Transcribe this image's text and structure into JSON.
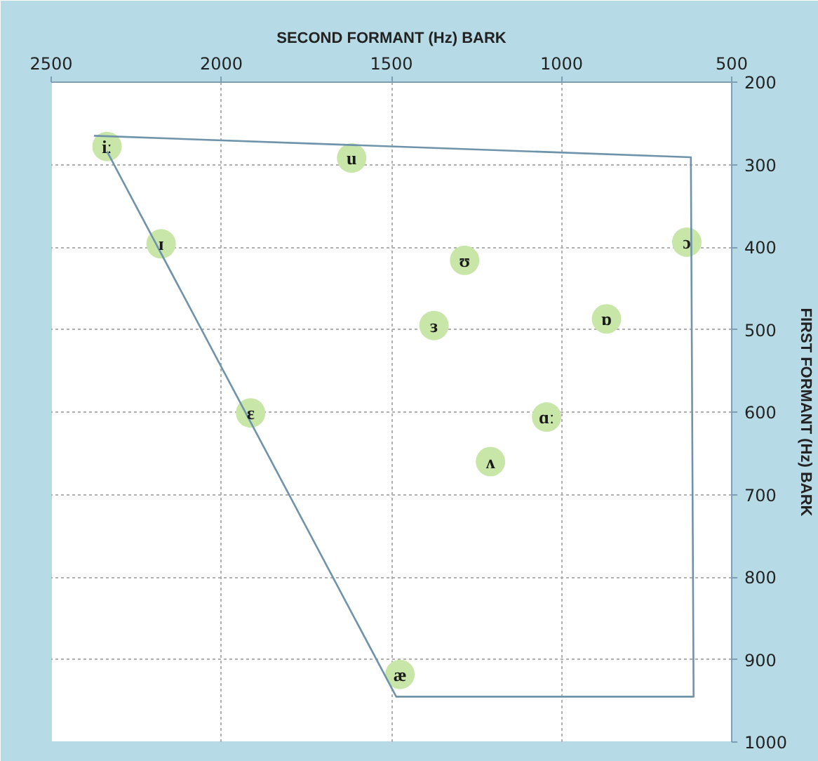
{
  "chart_data": {
    "type": "scatter",
    "xlabel": "SECOND FORMANT (Hz) BARK",
    "ylabel": "FIRST FORMANT (Hz) BARK",
    "xlim": [
      2500,
      500
    ],
    "xticks": [
      2500,
      2000,
      1500,
      1000,
      500
    ],
    "ylim": [
      1000,
      200
    ],
    "yticks": [
      200,
      300,
      400,
      500,
      600,
      700,
      800,
      900,
      1000
    ],
    "grid": true,
    "marker": "circle",
    "series": [
      {
        "type": "line",
        "marker": "none",
        "color": "#6f93ab",
        "x": [
          2374,
          620,
          612,
          1486,
          2336
        ],
        "values": [
          265,
          291,
          945,
          945,
          284
        ]
      },
      {
        "color": "#c8e6a8",
        "x": [
          2336,
          1617,
          2177,
          1285,
          1375,
          868,
          632,
          1914,
          1044,
          1209,
          1475
        ],
        "values": [
          278,
          292,
          396,
          416,
          495,
          487,
          394,
          601,
          606,
          660,
          918
        ]
      }
    ],
    "annotations": [
      {
        "text": "iː",
        "x": 2336,
        "y": 278
      },
      {
        "text": "u",
        "x": 1617,
        "y": 292
      },
      {
        "text": "ɪ",
        "x": 2177,
        "y": 396
      },
      {
        "text": "ʊ",
        "x": 1285,
        "y": 416
      },
      {
        "text": "ɜ",
        "x": 1375,
        "y": 495
      },
      {
        "text": "ɒ",
        "x": 868,
        "y": 487
      },
      {
        "text": "ɔ",
        "x": 632,
        "y": 394
      },
      {
        "text": "ɛ",
        "x": 1914,
        "y": 601
      },
      {
        "text": "ɑː",
        "x": 1044,
        "y": 606
      },
      {
        "text": "ʌ",
        "x": 1209,
        "y": 660
      },
      {
        "text": "æ",
        "x": 1475,
        "y": 918
      }
    ]
  }
}
